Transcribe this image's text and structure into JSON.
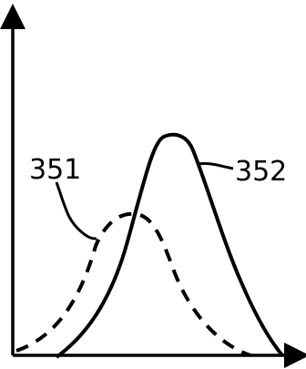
{
  "figure": {
    "curves": [
      {
        "label": "351",
        "style": "dashed"
      },
      {
        "label": "352",
        "style": "solid"
      }
    ],
    "colors": {
      "ink": "#000000",
      "background": "#ffffff"
    }
  }
}
